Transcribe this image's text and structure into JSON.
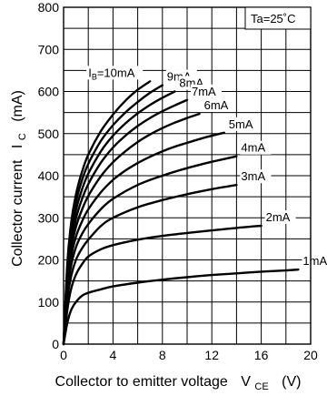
{
  "chart_data": {
    "type": "line",
    "xlabel": "Collector to emitter voltage",
    "xlabel_symbol": "V",
    "xlabel_sub": "CE",
    "xlabel_unit": "(V)",
    "ylabel": "Collector current",
    "ylabel_symbol": "I",
    "ylabel_sub": "C",
    "ylabel_unit": "(mA)",
    "xlim": [
      0,
      20
    ],
    "ylim": [
      0,
      800
    ],
    "xticks": [
      0,
      4,
      8,
      12,
      16,
      20
    ],
    "yticks": [
      0,
      100,
      200,
      300,
      400,
      500,
      600,
      700,
      800
    ],
    "x_grid_step": 2,
    "y_grid_step": 50,
    "grid": true,
    "annotation": "Ta=25˚C",
    "series": [
      {
        "name": "IB=10mA",
        "label_prefix": "I",
        "label_sub": "B",
        "label_suffix": "=10mA",
        "x": [
          0,
          0.3,
          0.6,
          1,
          1.5,
          2,
          3,
          4,
          5,
          6,
          7
        ],
        "y": [
          0,
          190,
          285,
          355,
          410,
          450,
          505,
          545,
          578,
          604,
          624
        ]
      },
      {
        "name": "9mA",
        "label": "9mA",
        "x": [
          0,
          0.3,
          0.6,
          1,
          1.5,
          2,
          3,
          4,
          5,
          6,
          7,
          8
        ],
        "y": [
          0,
          180,
          270,
          338,
          390,
          428,
          482,
          520,
          550,
          575,
          597,
          615
        ]
      },
      {
        "name": "8mA",
        "label": "8mA",
        "x": [
          0,
          0.3,
          0.6,
          1,
          1.5,
          2,
          3,
          4,
          5,
          6,
          7,
          8,
          9
        ],
        "y": [
          0,
          170,
          255,
          318,
          368,
          405,
          457,
          495,
          524,
          548,
          568,
          585,
          600
        ]
      },
      {
        "name": "7mA",
        "label": "7mA",
        "x": [
          0,
          0.3,
          0.6,
          1,
          1.5,
          2,
          3,
          4,
          5,
          6,
          7,
          8,
          9,
          10
        ],
        "y": [
          0,
          160,
          240,
          298,
          345,
          380,
          430,
          467,
          495,
          518,
          537,
          553,
          567,
          580
        ]
      },
      {
        "name": "6mA",
        "label": "6mA",
        "x": [
          0,
          0.3,
          0.6,
          1,
          1.5,
          2,
          3,
          4,
          5,
          6,
          7,
          8,
          9,
          10,
          11
        ],
        "y": [
          0,
          150,
          225,
          278,
          320,
          352,
          398,
          432,
          458,
          480,
          498,
          513,
          526,
          537,
          547
        ]
      },
      {
        "name": "5mA",
        "label": "5mA",
        "x": [
          0,
          0.3,
          0.6,
          1,
          1.5,
          2,
          3,
          4,
          5,
          6,
          7,
          8,
          9,
          10,
          11,
          12,
          13
        ],
        "y": [
          0,
          135,
          205,
          255,
          292,
          320,
          360,
          390,
          412,
          430,
          445,
          458,
          469,
          478,
          487,
          495,
          502
        ]
      },
      {
        "name": "4mA",
        "label": "4mA",
        "x": [
          0,
          0.3,
          0.6,
          1,
          1.5,
          2,
          3,
          4,
          6,
          8,
          10,
          12,
          14
        ],
        "y": [
          0,
          120,
          185,
          230,
          262,
          285,
          320,
          345,
          378,
          400,
          418,
          433,
          446
        ]
      },
      {
        "name": "3mA",
        "label": "3mA",
        "x": [
          0,
          0.3,
          0.6,
          1,
          1.5,
          2,
          3,
          4,
          6,
          8,
          10,
          12,
          14
        ],
        "y": [
          0,
          105,
          160,
          200,
          228,
          248,
          280,
          300,
          325,
          342,
          356,
          368,
          378
        ]
      },
      {
        "name": "2mA",
        "label": "2mA",
        "x": [
          0,
          0.3,
          0.6,
          1,
          1.5,
          2,
          3,
          4,
          6,
          8,
          10,
          12,
          14,
          16
        ],
        "y": [
          0,
          80,
          130,
          165,
          190,
          208,
          225,
          235,
          248,
          257,
          264,
          270,
          276,
          281
        ]
      },
      {
        "name": "1mA",
        "label": "1mA",
        "x": [
          0,
          0.3,
          0.6,
          1,
          1.5,
          2,
          3,
          4,
          6,
          8,
          10,
          12,
          14,
          16,
          18,
          19
        ],
        "y": [
          0,
          50,
          80,
          100,
          115,
          122,
          130,
          137,
          146,
          153,
          159,
          164,
          168,
          172,
          175,
          177
        ]
      }
    ]
  }
}
